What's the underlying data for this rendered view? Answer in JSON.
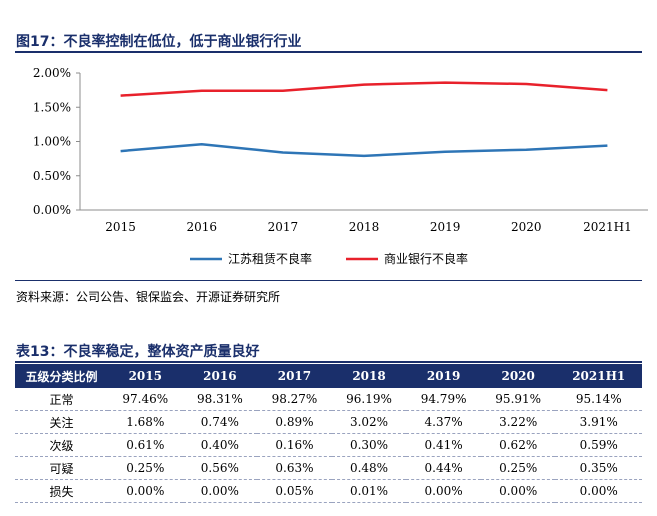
{
  "figure": {
    "title": "图17：不良率控制在低位，低于商业银行行业"
  },
  "chart_data": {
    "type": "line",
    "categories": [
      "2015",
      "2016",
      "2017",
      "2018",
      "2019",
      "2020",
      "2021H1"
    ],
    "y_ticks": [
      "2.00%",
      "1.50%",
      "1.00%",
      "0.50%",
      "0.00%"
    ],
    "ylim": [
      0,
      2.0
    ],
    "grid": false,
    "legend_position": "bottom",
    "series": [
      {
        "name": "江苏租赁不良率",
        "color": "#2e75b6",
        "values": [
          0.86,
          0.96,
          0.84,
          0.79,
          0.85,
          0.88,
          0.94
        ]
      },
      {
        "name": "商业银行不良率",
        "color": "#e8212b",
        "values": [
          1.67,
          1.74,
          1.74,
          1.83,
          1.86,
          1.84,
          1.75
        ]
      }
    ]
  },
  "source": "资料来源：公司公告、银保监会、开源证券研究所",
  "table": {
    "title": "表13：不良率稳定，整体资产质量良好",
    "header": [
      "五级分类比例",
      "2015",
      "2016",
      "2017",
      "2018",
      "2019",
      "2020",
      "2021H1"
    ],
    "rows": [
      [
        "正常",
        "97.46%",
        "98.31%",
        "98.27%",
        "96.19%",
        "94.79%",
        "95.91%",
        "95.14%"
      ],
      [
        "关注",
        "1.68%",
        "0.74%",
        "0.89%",
        "3.02%",
        "4.37%",
        "3.22%",
        "3.91%"
      ],
      [
        "次级",
        "0.61%",
        "0.40%",
        "0.16%",
        "0.30%",
        "0.41%",
        "0.62%",
        "0.59%"
      ],
      [
        "可疑",
        "0.25%",
        "0.56%",
        "0.63%",
        "0.48%",
        "0.44%",
        "0.25%",
        "0.35%"
      ],
      [
        "损失",
        "0.00%",
        "0.00%",
        "0.05%",
        "0.01%",
        "0.00%",
        "0.00%",
        "0.00%"
      ]
    ]
  },
  "colors": {
    "accent": "#1a2f6b"
  }
}
